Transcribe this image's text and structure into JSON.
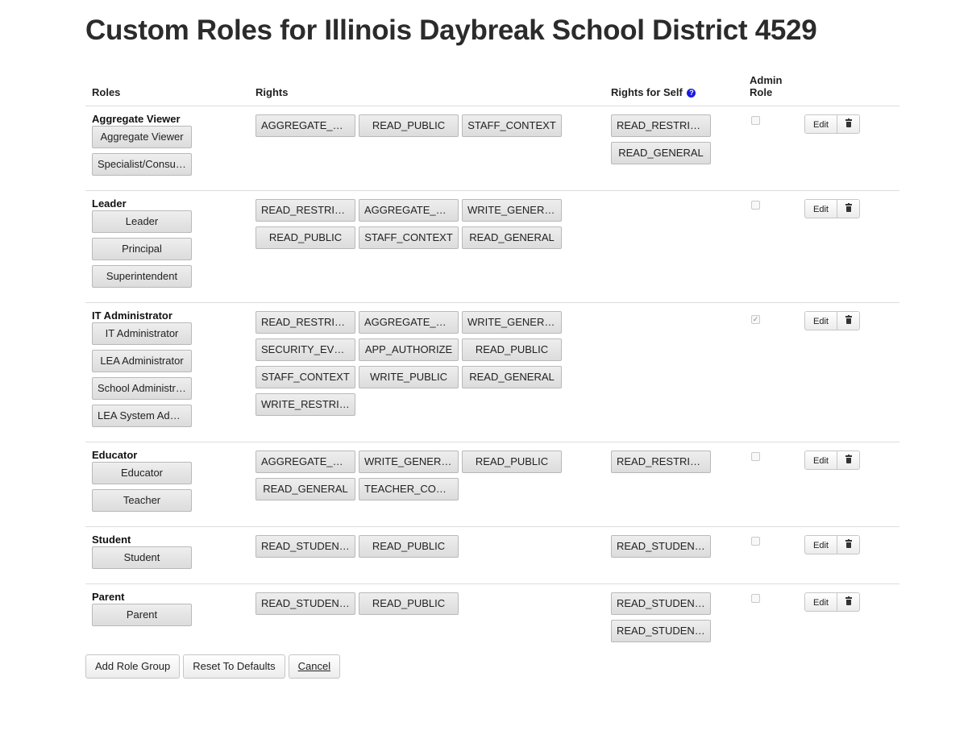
{
  "page": {
    "title": "Custom Roles for Illinois Daybreak School District 4529"
  },
  "columns": {
    "roles": "Roles",
    "rights": "Rights",
    "rights_self": "Rights for Self",
    "admin_line1": "Admin",
    "admin_line2": "Role"
  },
  "help_icon_glyph": "?",
  "groups": [
    {
      "name": "Aggregate Viewer",
      "roles": [
        "Aggregate Viewer",
        "Specialist/Consultant"
      ],
      "rights": [
        "AGGREGATE_READ",
        "READ_PUBLIC",
        "STAFF_CONTEXT"
      ],
      "self_rights": [
        "READ_RESTRICTED",
        "READ_GENERAL"
      ],
      "admin": false,
      "edit_label": "Edit"
    },
    {
      "name": "Leader",
      "roles": [
        "Leader",
        "Principal",
        "Superintendent"
      ],
      "rights": [
        "READ_RESTRICTED",
        "AGGREGATE_READ",
        "WRITE_GENERAL",
        "READ_PUBLIC",
        "STAFF_CONTEXT",
        "READ_GENERAL"
      ],
      "self_rights": [],
      "admin": false,
      "edit_label": "Edit"
    },
    {
      "name": "IT Administrator",
      "roles": [
        "IT Administrator",
        "LEA Administrator",
        "School Administrator",
        "LEA System Administrator"
      ],
      "rights": [
        "READ_RESTRICTED",
        "AGGREGATE_READ",
        "WRITE_GENERAL",
        "SECURITY_EVENT",
        "APP_AUTHORIZE",
        "READ_PUBLIC",
        "STAFF_CONTEXT",
        "WRITE_PUBLIC",
        "READ_GENERAL",
        "WRITE_RESTRICTED"
      ],
      "self_rights": [],
      "admin": true,
      "edit_label": "Edit"
    },
    {
      "name": "Educator",
      "roles": [
        "Educator",
        "Teacher"
      ],
      "rights": [
        "AGGREGATE_READ",
        "WRITE_GENERAL",
        "READ_PUBLIC",
        "READ_GENERAL",
        "TEACHER_CONTEXT"
      ],
      "self_rights": [
        "READ_RESTRICTED"
      ],
      "admin": false,
      "edit_label": "Edit"
    },
    {
      "name": "Student",
      "roles": [
        "Student"
      ],
      "rights": [
        "READ_STUDENT_GENERAL",
        "READ_PUBLIC"
      ],
      "self_rights": [
        "READ_STUDENT_PRIVATE"
      ],
      "admin": false,
      "edit_label": "Edit"
    },
    {
      "name": "Parent",
      "roles": [
        "Parent"
      ],
      "rights": [
        "READ_STUDENT_GENERAL",
        "READ_PUBLIC"
      ],
      "self_rights": [
        "READ_STUDENT_PRIVATE",
        "READ_STUDENT_RESTRICTED"
      ],
      "admin": false,
      "edit_label": "Edit"
    }
  ],
  "footer": {
    "add_label": "Add Role Group",
    "reset_label": "Reset To Defaults",
    "cancel_label": "Cancel"
  }
}
